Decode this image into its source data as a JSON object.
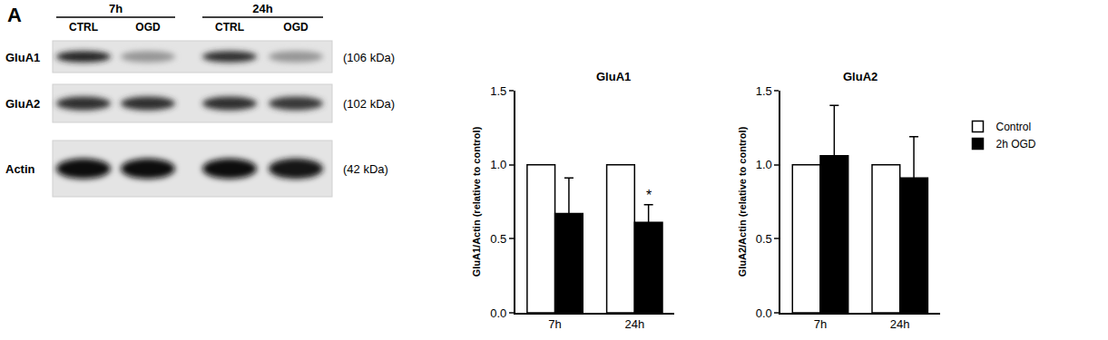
{
  "panel_label": "A",
  "blot": {
    "time_labels": [
      "7h",
      "24h"
    ],
    "lane_labels": [
      "CTRL",
      "OGD",
      "CTRL",
      "OGD"
    ],
    "rows": [
      {
        "label": "GluA1",
        "mw": "(106 kDa)"
      },
      {
        "label": "GluA2",
        "mw": "(102 kDa)"
      },
      {
        "label": "Actin",
        "mw": "(42 kDa)"
      }
    ]
  },
  "chart_data": [
    {
      "type": "bar",
      "title": "GluA1",
      "y_label": "GluA1/Actin (relative to control)",
      "categories": [
        "7h",
        "24h"
      ],
      "series": [
        {
          "name": "Control",
          "color": "#ffffff",
          "values": [
            1.0,
            1.0
          ]
        },
        {
          "name": "2h OGD",
          "color": "#000000",
          "values": [
            0.67,
            0.61
          ],
          "errors": [
            0.24,
            0.12
          ]
        }
      ],
      "ylim": [
        0,
        1.5
      ],
      "yticks": [
        {
          "value": 0,
          "label": "0.0"
        },
        {
          "value": 0.5,
          "label": "0.5"
        },
        {
          "value": 1,
          "label": "1.0"
        },
        {
          "value": 1.5,
          "label": "1.5"
        }
      ],
      "annotations": [
        {
          "text": "*",
          "category": "24h",
          "series": "2h OGD"
        }
      ],
      "grid": false,
      "legend": "right"
    },
    {
      "type": "bar",
      "title": "GluA2",
      "y_label": "GluA2/Actin (relative to control)",
      "categories": [
        "7h",
        "24h"
      ],
      "series": [
        {
          "name": "Control",
          "color": "#ffffff",
          "values": [
            1.0,
            1.0
          ]
        },
        {
          "name": "2h OGD",
          "color": "#000000",
          "values": [
            1.06,
            0.91
          ],
          "errors": [
            0.34,
            0.28
          ]
        }
      ],
      "ylim": [
        0,
        1.5
      ],
      "yticks": [
        {
          "value": 0,
          "label": "0.0"
        },
        {
          "value": 0.5,
          "label": "0.5"
        },
        {
          "value": 1,
          "label": "1.0"
        },
        {
          "value": 1.5,
          "label": "1.5"
        }
      ],
      "grid": false,
      "legend": "right"
    }
  ]
}
